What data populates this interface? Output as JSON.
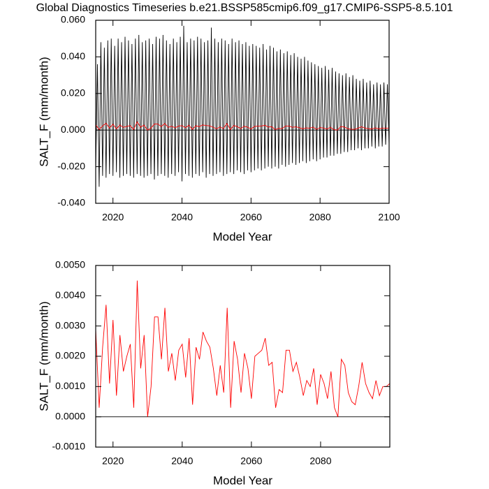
{
  "chart_data": [
    {
      "type": "line",
      "title": "Global Diagnostics Timeseries b.e21.BSSP585cmip6.f09_g17.CMIP6-SSP5-8.5.101",
      "xlabel": "Model Year",
      "ylabel": "SALT_F (mm/month)",
      "xlim": [
        2015,
        2100
      ],
      "xticks": [
        2020,
        2040,
        2060,
        2080,
        2100
      ],
      "ylim": [
        -0.04,
        0.06
      ],
      "yticks": [
        {
          "value": -0.04,
          "label": "-0.040"
        },
        {
          "value": -0.02,
          "label": "-0.020"
        },
        {
          "value": 0,
          "label": "0.000"
        },
        {
          "value": 0.02,
          "label": "0.020"
        },
        {
          "value": 0.04,
          "label": "0.040"
        },
        {
          "value": 0.06,
          "label": "0.060"
        }
      ],
      "series": [
        {
          "color": "#000000",
          "x": [
            2015,
            2015.5,
            2016,
            2016.5,
            2017,
            2017.5,
            2018,
            2018.5,
            2019,
            2019.5,
            2020,
            2020.5,
            2021,
            2021.5,
            2022,
            2022.5,
            2023,
            2023.5,
            2024,
            2024.5,
            2025,
            2025.5,
            2026,
            2026.5,
            2027,
            2027.5,
            2028,
            2028.5,
            2029,
            2029.5,
            2030,
            2030.5,
            2031,
            2031.5,
            2032,
            2032.5,
            2033,
            2033.5,
            2034,
            2034.5,
            2035,
            2035.5,
            2036,
            2036.5,
            2037,
            2037.5,
            2038,
            2038.5,
            2039,
            2039.5,
            2040,
            2040.5,
            2041,
            2041.5,
            2042,
            2042.5,
            2043,
            2043.5,
            2044,
            2044.5,
            2045,
            2045.5,
            2046,
            2046.5,
            2047,
            2047.5,
            2048,
            2048.5,
            2049,
            2049.5,
            2050,
            2050.5,
            2051,
            2051.5,
            2052,
            2052.5,
            2053,
            2053.5,
            2054,
            2054.5,
            2055,
            2055.5,
            2056,
            2056.5,
            2057,
            2057.5,
            2058,
            2058.5,
            2059,
            2059.5,
            2060,
            2060.5,
            2061,
            2061.5,
            2062,
            2062.5,
            2063,
            2063.5,
            2064,
            2064.5,
            2065,
            2065.5,
            2066,
            2066.5,
            2067,
            2067.5,
            2068,
            2068.5,
            2069,
            2069.5,
            2070,
            2070.5,
            2071,
            2071.5,
            2072,
            2072.5,
            2073,
            2073.5,
            2074,
            2074.5,
            2075,
            2075.5,
            2076,
            2076.5,
            2077,
            2077.5,
            2078,
            2078.5,
            2079,
            2079.5,
            2080,
            2080.5,
            2081,
            2081.5,
            2082,
            2082.5,
            2083,
            2083.5,
            2084,
            2084.5,
            2085,
            2085.5,
            2086,
            2086.5,
            2087,
            2087.5,
            2088,
            2088.5,
            2089,
            2089.5,
            2090,
            2090.5,
            2091,
            2091.5,
            2092,
            2092.5,
            2093,
            2093.5,
            2094,
            2094.5,
            2095,
            2095.5,
            2096,
            2096.5,
            2097,
            2097.5,
            2098,
            2098.5,
            2099,
            2099.5,
            2100
          ],
          "values": [
            -0.022,
            0.036,
            -0.031,
            0.048,
            -0.025,
            0.045,
            -0.026,
            0.049,
            -0.024,
            0.05,
            -0.025,
            0.046,
            -0.023,
            0.05,
            -0.026,
            0.048,
            -0.025,
            0.051,
            -0.024,
            0.049,
            -0.025,
            0.047,
            -0.026,
            0.05,
            -0.024,
            0.052,
            -0.025,
            0.048,
            -0.026,
            0.049,
            -0.025,
            0.05,
            -0.024,
            0.047,
            -0.027,
            0.051,
            -0.025,
            0.05,
            -0.024,
            0.052,
            -0.025,
            0.049,
            -0.026,
            0.047,
            -0.024,
            0.05,
            -0.025,
            0.048,
            -0.023,
            0.051,
            -0.028,
            0.057,
            -0.024,
            0.048,
            -0.025,
            0.05,
            -0.026,
            0.049,
            -0.024,
            0.051,
            -0.025,
            0.05,
            -0.023,
            0.048,
            -0.026,
            0.049,
            -0.024,
            0.056,
            -0.025,
            0.05,
            -0.024,
            0.048,
            -0.023,
            0.05,
            -0.025,
            0.049,
            -0.024,
            0.047,
            -0.023,
            0.05,
            -0.024,
            0.048,
            -0.022,
            0.049,
            -0.023,
            0.047,
            -0.024,
            0.048,
            -0.022,
            0.046,
            -0.023,
            0.047,
            -0.022,
            0.046,
            -0.021,
            0.045,
            -0.022,
            0.047,
            -0.021,
            0.044,
            -0.02,
            0.046,
            -0.021,
            0.045,
            -0.02,
            0.043,
            -0.021,
            0.044,
            -0.019,
            0.042,
            -0.02,
            0.043,
            -0.019,
            0.041,
            -0.018,
            0.042,
            -0.019,
            0.04,
            -0.018,
            0.039,
            -0.017,
            0.04,
            -0.018,
            0.038,
            -0.017,
            0.037,
            -0.016,
            0.036,
            -0.017,
            0.035,
            -0.016,
            0.034,
            -0.015,
            0.035,
            -0.015,
            0.033,
            -0.014,
            0.034,
            -0.014,
            0.032,
            -0.013,
            0.031,
            -0.013,
            0.03,
            -0.012,
            0.031,
            -0.012,
            0.029,
            -0.011,
            0.03,
            -0.011,
            0.028,
            -0.01,
            0.027,
            -0.011,
            0.028,
            -0.01,
            0.026,
            -0.01,
            0.027,
            -0.009,
            0.025,
            -0.01,
            0.026,
            -0.009,
            0.025,
            -0.009,
            0.026,
            -0.008,
            0.025,
            -0.008
          ]
        },
        {
          "color": "#ff0000",
          "x": [
            2015,
            2016,
            2017,
            2018,
            2019,
            2020,
            2021,
            2022,
            2023,
            2024,
            2025,
            2026,
            2027,
            2028,
            2029,
            2030,
            2031,
            2032,
            2033,
            2034,
            2035,
            2036,
            2037,
            2038,
            2039,
            2040,
            2041,
            2042,
            2043,
            2044,
            2045,
            2046,
            2047,
            2048,
            2049,
            2050,
            2051,
            2052,
            2053,
            2054,
            2055,
            2056,
            2057,
            2058,
            2059,
            2060,
            2061,
            2062,
            2063,
            2064,
            2065,
            2066,
            2067,
            2068,
            2069,
            2070,
            2071,
            2072,
            2073,
            2074,
            2075,
            2076,
            2077,
            2078,
            2079,
            2080,
            2081,
            2082,
            2083,
            2084,
            2085,
            2086,
            2087,
            2088,
            2089,
            2090,
            2091,
            2092,
            2093,
            2094,
            2095,
            2096,
            2097,
            2098,
            2099,
            2100
          ],
          "values": [
            0.0029,
            0.0003,
            0.0023,
            0.0037,
            0.0011,
            0.0032,
            0.0007,
            0.0027,
            0.0015,
            0.002,
            0.0024,
            0.0003,
            0.0045,
            0.0016,
            0.0027,
            0.0,
            0.001,
            0.0033,
            0.0033,
            0.0019,
            0.0036,
            0.0015,
            0.0021,
            0.0012,
            0.0022,
            0.0024,
            0.0013,
            0.0026,
            0.0004,
            0.0023,
            0.0019,
            0.0028,
            0.0025,
            0.0023,
            0.0016,
            0.0007,
            0.0017,
            0.0008,
            0.0036,
            0.0003,
            0.0025,
            0.0019,
            0.0008,
            0.0021,
            0.0016,
            0.0006,
            0.002,
            0.0021,
            0.0022,
            0.0026,
            0.0017,
            0.0018,
            0.0003,
            0.0009,
            0.0008,
            0.0022,
            0.0022,
            0.0015,
            0.0018,
            0.0013,
            0.0007,
            0.0012,
            0.001,
            0.0016,
            0.0004,
            0.0014,
            0.0011,
            0.0006,
            0.0015,
            0.0003,
            0.0,
            0.0019,
            0.0017,
            0.0008,
            0.0005,
            0.0004,
            0.001,
            0.0018,
            0.0011,
            0.0008,
            0.0006,
            0.0012,
            0.0007,
            0.001,
            0.001,
            0.0011
          ]
        }
      ]
    },
    {
      "type": "line",
      "xlabel": "Model Year",
      "ylabel": "SALT_F (mm/month)",
      "xlim": [
        2015,
        2100
      ],
      "xticks": [
        2020,
        2040,
        2060,
        2080
      ],
      "ylim": [
        -0.001,
        0.005
      ],
      "yticks": [
        {
          "value": -0.001,
          "label": "-0.0010"
        },
        {
          "value": 0,
          "label": "0.0000"
        },
        {
          "value": 0.001,
          "label": "0.0010"
        },
        {
          "value": 0.002,
          "label": "0.0020"
        },
        {
          "value": 0.003,
          "label": "0.0030"
        },
        {
          "value": 0.004,
          "label": "0.0040"
        },
        {
          "value": 0.005,
          "label": "0.0050"
        }
      ],
      "series": [
        {
          "color": "#ff0000",
          "x": [
            2015,
            2016,
            2017,
            2018,
            2019,
            2020,
            2021,
            2022,
            2023,
            2024,
            2025,
            2026,
            2027,
            2028,
            2029,
            2030,
            2031,
            2032,
            2033,
            2034,
            2035,
            2036,
            2037,
            2038,
            2039,
            2040,
            2041,
            2042,
            2043,
            2044,
            2045,
            2046,
            2047,
            2048,
            2049,
            2050,
            2051,
            2052,
            2053,
            2054,
            2055,
            2056,
            2057,
            2058,
            2059,
            2060,
            2061,
            2062,
            2063,
            2064,
            2065,
            2066,
            2067,
            2068,
            2069,
            2070,
            2071,
            2072,
            2073,
            2074,
            2075,
            2076,
            2077,
            2078,
            2079,
            2080,
            2081,
            2082,
            2083,
            2084,
            2085,
            2086,
            2087,
            2088,
            2089,
            2090,
            2091,
            2092,
            2093,
            2094,
            2095,
            2096,
            2097,
            2098,
            2099,
            2100
          ],
          "values": [
            0.0029,
            0.0003,
            0.0023,
            0.0037,
            0.0011,
            0.0032,
            0.0007,
            0.0027,
            0.0015,
            0.002,
            0.0024,
            0.0003,
            0.0045,
            0.0016,
            0.0027,
            0.0,
            0.001,
            0.0033,
            0.0033,
            0.0019,
            0.0036,
            0.0015,
            0.0021,
            0.0012,
            0.0022,
            0.0024,
            0.0013,
            0.0026,
            0.0004,
            0.0023,
            0.0019,
            0.0028,
            0.0025,
            0.0023,
            0.0016,
            0.0007,
            0.0017,
            0.0008,
            0.0036,
            0.0003,
            0.0025,
            0.0019,
            0.0008,
            0.0021,
            0.0016,
            0.0006,
            0.002,
            0.0021,
            0.0022,
            0.0026,
            0.0017,
            0.0018,
            0.0003,
            0.0009,
            0.0008,
            0.0022,
            0.0022,
            0.0015,
            0.0018,
            0.0013,
            0.0007,
            0.0012,
            0.001,
            0.0016,
            0.0004,
            0.0014,
            0.0011,
            0.0006,
            0.0015,
            0.0003,
            0.0,
            0.0019,
            0.0017,
            0.0008,
            0.0005,
            0.0004,
            0.001,
            0.0018,
            0.0011,
            0.0008,
            0.0006,
            0.0012,
            0.0007,
            0.001,
            0.001,
            0.0011
          ]
        }
      ]
    }
  ]
}
